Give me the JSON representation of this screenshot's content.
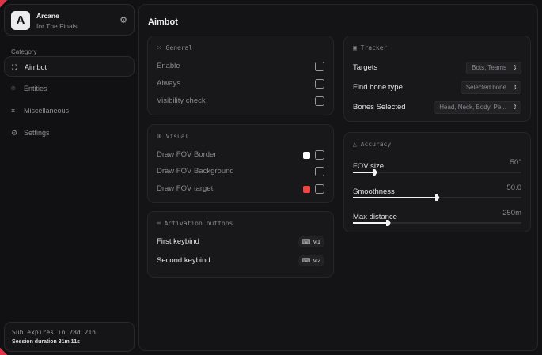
{
  "colors": {
    "accent": "#e0334a",
    "white_swatch": "#ffffff",
    "red_swatch": "#ef4444"
  },
  "brand": {
    "logo": "A",
    "name": "Arcane",
    "subtitle": "for The Finals",
    "icon": "gear-icon"
  },
  "sidebar": {
    "category_label": "Category",
    "items": [
      {
        "label": "Aimbot",
        "icon": "crosshair-icon",
        "active": true
      },
      {
        "label": "Entities",
        "icon": "entities-icon",
        "active": false
      },
      {
        "label": "Miscellaneous",
        "icon": "misc-icon",
        "active": false
      },
      {
        "label": "Settings",
        "icon": "settings-icon",
        "active": false
      }
    ]
  },
  "subscription": {
    "expires": "Sub expires in 28d 21h",
    "session": "Session duration 31m 11s"
  },
  "main": {
    "title": "Aimbot"
  },
  "general": {
    "title": "General",
    "items": [
      {
        "label": "Enable",
        "checked": false
      },
      {
        "label": "Always",
        "checked": false
      },
      {
        "label": "Visibility check",
        "checked": false
      }
    ]
  },
  "visual": {
    "title": "Visual",
    "items": [
      {
        "label": "Draw FOV Border",
        "checked": false,
        "color": "#ffffff"
      },
      {
        "label": "Draw FOV Background",
        "checked": false
      },
      {
        "label": "Draw FOV target",
        "checked": false,
        "color": "#ef4444"
      }
    ]
  },
  "activation": {
    "title": "Activation buttons",
    "items": [
      {
        "label": "First keybind",
        "key": "M1"
      },
      {
        "label": "Second keybind",
        "key": "M2"
      }
    ]
  },
  "tracker": {
    "title": "Tracker",
    "items": [
      {
        "label": "Targets",
        "value": "Bots, Teams"
      },
      {
        "label": "Find bone type",
        "value": "Selected bone"
      },
      {
        "label": "Bones Selected",
        "value": "Head, Neck, Body, Pe..."
      }
    ]
  },
  "accuracy": {
    "title": "Accuracy",
    "sliders": [
      {
        "label": "FOV size",
        "value": "50°",
        "fraction": 0.13
      },
      {
        "label": "Smoothness",
        "value": "50.0",
        "fraction": 0.5
      },
      {
        "label": "Max distance",
        "value": "250m",
        "fraction": 0.21
      }
    ]
  }
}
